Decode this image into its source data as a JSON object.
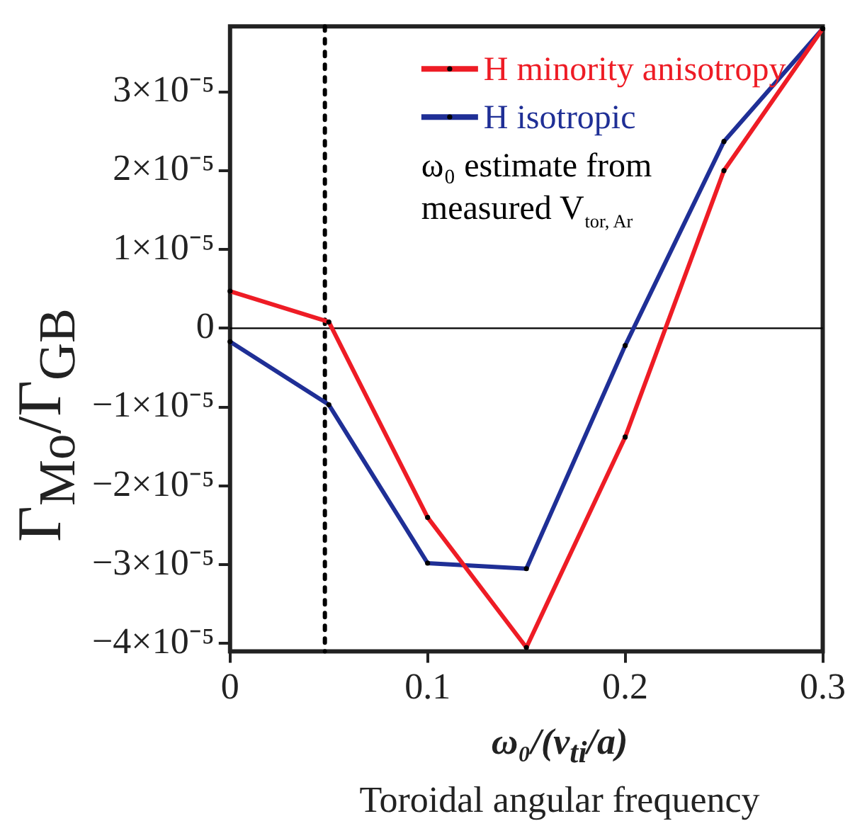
{
  "chart_data": {
    "type": "line",
    "xlabel": "ω₀/(v$_{ti}$/a)",
    "ylabel": "Γ$_{Mo}$/Γ$_{GB}$",
    "annotations": [
      "Toroidal angular frequency"
    ],
    "x": [
      0,
      0.05,
      0.1,
      0.15,
      0.2,
      0.25,
      0.3
    ],
    "series": [
      {
        "name": "H minority anisotropy",
        "color": "#ee1c25",
        "values": [
          4.7e-06,
          8e-07,
          -2.4e-05,
          -4.05e-05,
          -1.38e-05,
          2e-05,
          3.8e-05
        ]
      },
      {
        "name": "H isotropic",
        "color": "#1f2f96",
        "values": [
          -1.7e-06,
          -9.7e-06,
          -2.98e-05,
          -3.05e-05,
          -2.2e-06,
          2.37e-05,
          3.8e-05
        ]
      }
    ],
    "xlim": [
      0,
      0.3
    ],
    "xticks": [
      0,
      0.1,
      0.2,
      0.3
    ],
    "ylim": [
      -4.1e-05,
      3.83e-05
    ],
    "yticks": [
      {
        "value": -4e-05,
        "label": "−4×10⁻⁵"
      },
      {
        "value": -3e-05,
        "label": "−3×10⁻⁵"
      },
      {
        "value": -2e-05,
        "label": "−2×10⁻⁵"
      },
      {
        "value": -1e-05,
        "label": "−1×10⁻⁵"
      },
      {
        "value": 0,
        "label": "0"
      },
      {
        "value": 1e-05,
        "label": "1×10⁻⁵"
      },
      {
        "value": 2e-05,
        "label": "2×10⁻⁵"
      },
      {
        "value": 3e-05,
        "label": "3×10⁻⁵"
      }
    ],
    "ref_lines": [
      {
        "axis": "x",
        "value": 0.048,
        "label": "ω₀ estimate from measured V$_{tor, Ar}$",
        "color": "#000000",
        "line_style": "dotted"
      },
      {
        "axis": "y",
        "value": 0,
        "label": null,
        "color": "#000000",
        "line_style": "solid"
      }
    ],
    "grid": false,
    "legend": "top right",
    "marker": "circle",
    "line_style": "solid"
  }
}
